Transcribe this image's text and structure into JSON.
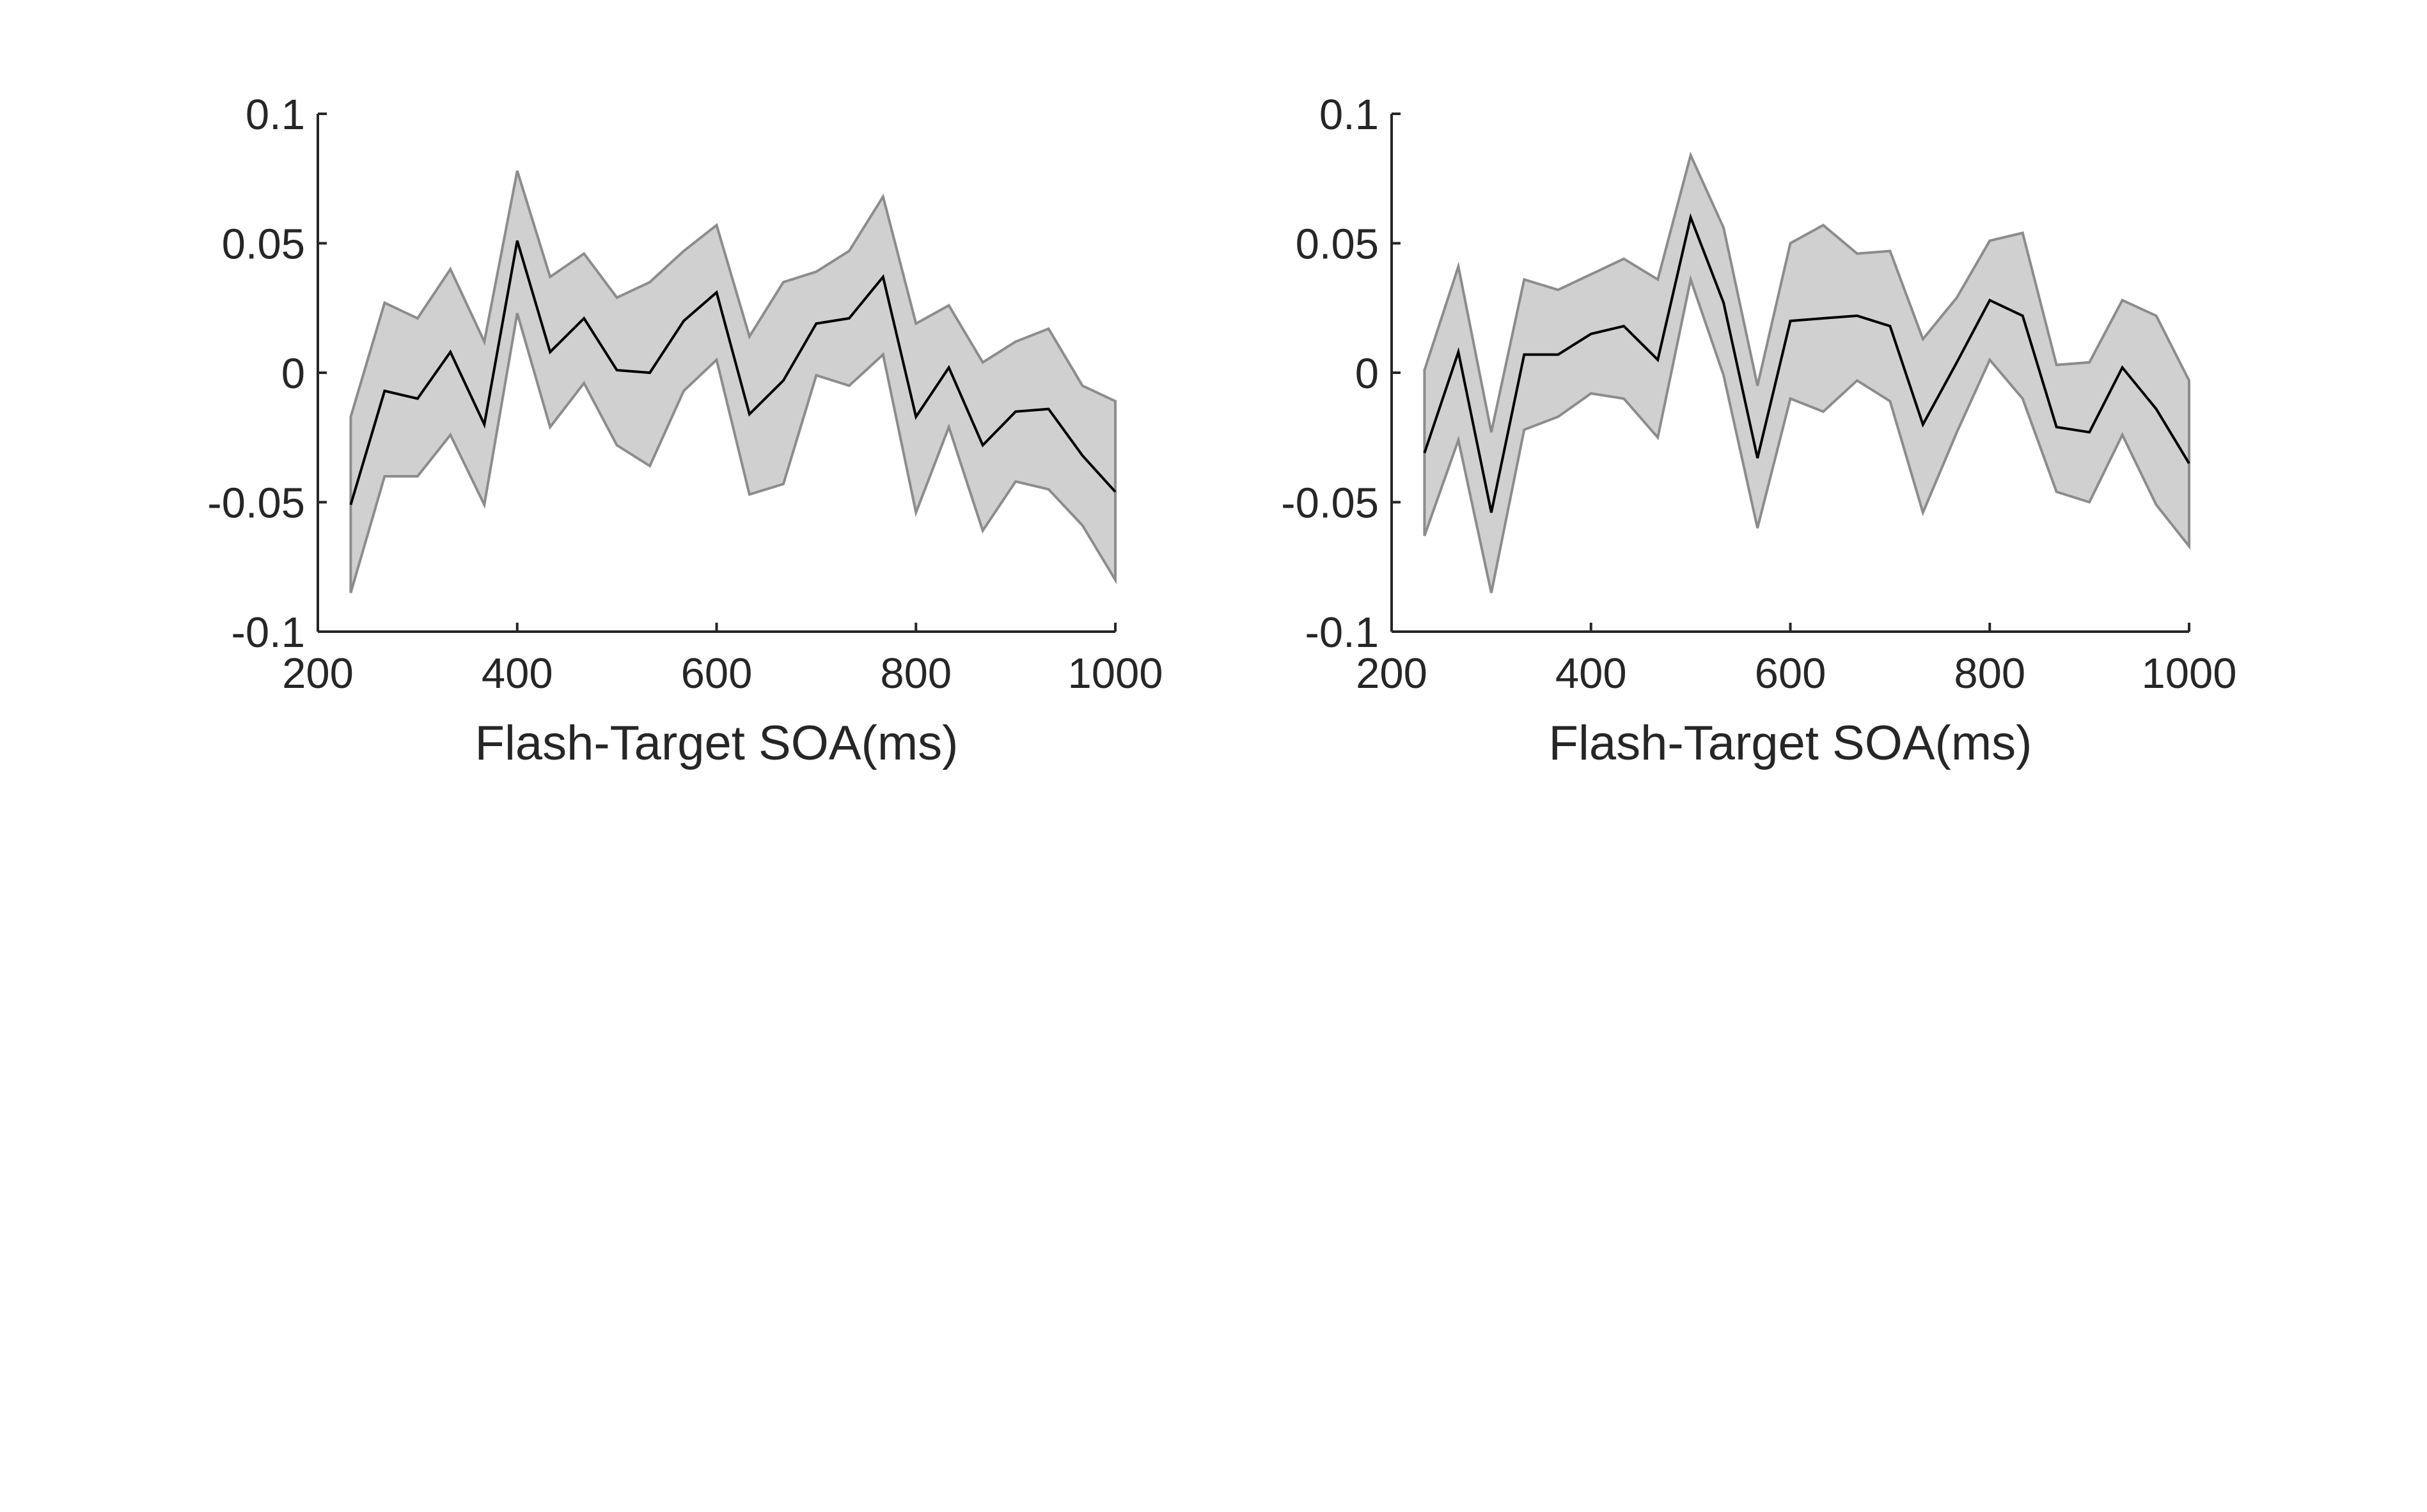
{
  "colors": {
    "band_fill": "#d0d0d0",
    "band_edge": "#8c8c8c",
    "mean_line": "#000000",
    "axis": "#262626",
    "background": "#ffffff"
  },
  "chart_data": [
    {
      "id": "left-panel",
      "type": "area",
      "xlabel": "Flash-Target SOA(ms)",
      "ylabel": "",
      "title": "",
      "xlim": [
        200,
        1000
      ],
      "ylim": [
        -0.1,
        0.1
      ],
      "xticks": [
        200,
        400,
        600,
        800,
        1000
      ],
      "xtick_labels": [
        "200",
        "400",
        "600",
        "800",
        "1000"
      ],
      "yticks": [
        0.1,
        0.05,
        0,
        -0.05,
        -0.1
      ],
      "ytick_labels": [
        "0.1",
        "0.05",
        "0",
        "-0.05",
        "-0.1"
      ],
      "grid": false,
      "x": [
        233,
        267,
        300,
        333,
        367,
        400,
        433,
        467,
        500,
        533,
        567,
        600,
        633,
        667,
        700,
        733,
        767,
        800,
        833,
        867,
        900,
        933,
        967,
        1000
      ],
      "series": [
        {
          "role": "mean",
          "values": [
            -0.051,
            -0.007,
            -0.01,
            0.008,
            -0.02,
            0.051,
            0.008,
            0.021,
            0.001,
            0.0,
            0.02,
            0.031,
            -0.016,
            -0.003,
            0.019,
            0.021,
            0.037,
            -0.017,
            0.002,
            -0.028,
            -0.015,
            -0.014,
            -0.032,
            -0.046
          ]
        },
        {
          "role": "upper",
          "values": [
            -0.017,
            0.027,
            0.021,
            0.04,
            0.012,
            0.078,
            0.037,
            0.046,
            0.029,
            0.035,
            0.047,
            0.057,
            0.014,
            0.035,
            0.039,
            0.047,
            0.068,
            0.019,
            0.026,
            0.004,
            0.012,
            0.017,
            -0.005,
            -0.011
          ]
        },
        {
          "role": "lower",
          "values": [
            -0.085,
            -0.04,
            -0.04,
            -0.024,
            -0.051,
            0.023,
            -0.021,
            -0.004,
            -0.028,
            -0.036,
            -0.007,
            0.005,
            -0.047,
            -0.043,
            -0.001,
            -0.005,
            0.007,
            -0.054,
            -0.021,
            -0.061,
            -0.042,
            -0.045,
            -0.059,
            -0.08
          ]
        }
      ]
    },
    {
      "id": "right-panel",
      "type": "area",
      "xlabel": "Flash-Target SOA(ms)",
      "ylabel": "",
      "title": "",
      "xlim": [
        200,
        1000
      ],
      "ylim": [
        -0.1,
        0.1
      ],
      "xticks": [
        200,
        400,
        600,
        800,
        1000
      ],
      "xtick_labels": [
        "200",
        "400",
        "600",
        "800",
        "1000"
      ],
      "yticks": [
        0.1,
        0.05,
        0,
        -0.05,
        -0.1
      ],
      "ytick_labels": [
        "0.1",
        "0.05",
        "0",
        "-0.05",
        "-0.1"
      ],
      "grid": false,
      "x": [
        233,
        267,
        300,
        333,
        367,
        400,
        433,
        467,
        500,
        533,
        567,
        600,
        633,
        667,
        700,
        733,
        767,
        800,
        833,
        867,
        900,
        933,
        967,
        1000
      ],
      "series": [
        {
          "role": "mean",
          "values": [
            -0.031,
            0.008,
            -0.054,
            0.007,
            0.007,
            0.015,
            0.018,
            0.005,
            0.06,
            0.027,
            -0.033,
            0.02,
            0.021,
            0.022,
            0.018,
            -0.02,
            0.004,
            0.028,
            0.022,
            -0.021,
            -0.023,
            0.002,
            -0.014,
            -0.035
          ]
        },
        {
          "role": "upper",
          "values": [
            0.001,
            0.041,
            -0.023,
            0.036,
            0.032,
            0.038,
            0.044,
            0.036,
            0.084,
            0.056,
            -0.005,
            0.05,
            0.057,
            0.046,
            0.047,
            0.013,
            0.029,
            0.051,
            0.054,
            0.003,
            0.004,
            0.028,
            0.022,
            -0.003
          ]
        },
        {
          "role": "lower",
          "values": [
            -0.063,
            -0.026,
            -0.085,
            -0.022,
            -0.017,
            -0.008,
            -0.01,
            -0.025,
            0.036,
            -0.001,
            -0.06,
            -0.01,
            -0.015,
            -0.003,
            -0.011,
            -0.054,
            -0.023,
            0.005,
            -0.01,
            -0.046,
            -0.05,
            -0.024,
            -0.051,
            -0.067
          ]
        }
      ]
    }
  ]
}
